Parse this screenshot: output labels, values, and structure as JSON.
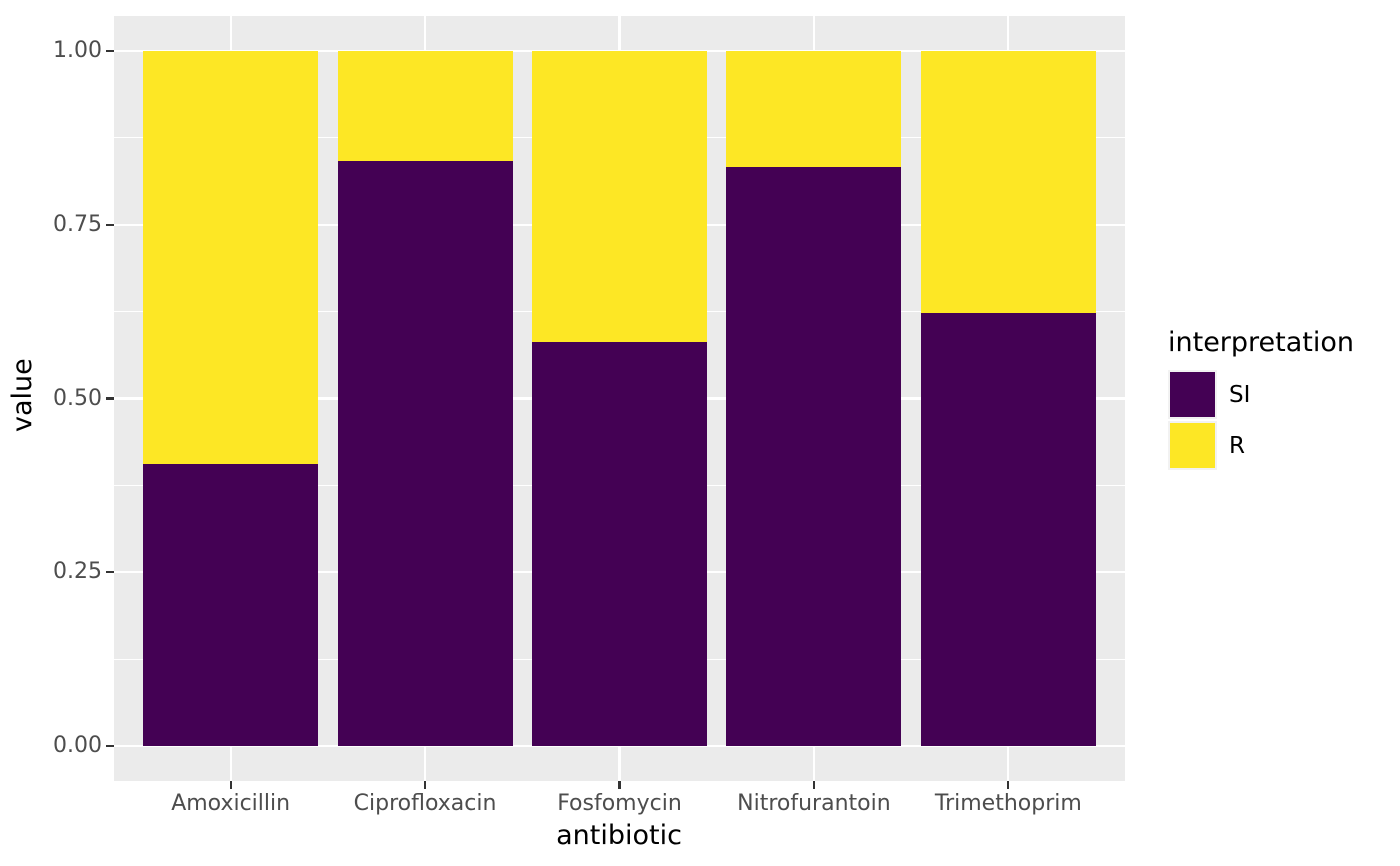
{
  "chart_data": {
    "type": "bar",
    "stacked": true,
    "orientation": "vertical",
    "title": "",
    "xlabel": "antibiotic",
    "ylabel": "value",
    "categories": [
      "Amoxicillin",
      "Ciprofloxacin",
      "Fosfomycin",
      "Nitrofurantoin",
      "Trimethoprim"
    ],
    "series": [
      {
        "name": "SI",
        "color": "#440154",
        "values": [
          0.406,
          0.842,
          0.581,
          0.833,
          0.623
        ]
      },
      {
        "name": "R",
        "color": "#FDE725",
        "values": [
          0.594,
          0.158,
          0.419,
          0.167,
          0.377
        ]
      }
    ],
    "ylim": [
      0,
      1
    ],
    "yticks": [
      {
        "value": 1.0,
        "label": "1.00"
      },
      {
        "value": 0.75,
        "label": "0.75"
      },
      {
        "value": 0.5,
        "label": "0.50"
      },
      {
        "value": 0.25,
        "label": "0.25"
      },
      {
        "value": 0.0,
        "label": "0.00"
      }
    ],
    "minor_yticks": [
      0.875,
      0.625,
      0.375,
      0.125
    ],
    "grid": true,
    "legend": {
      "title": "interpretation",
      "position": "right",
      "entries": [
        {
          "label": "SI",
          "color": "#440154"
        },
        {
          "label": "R",
          "color": "#FDE725"
        }
      ]
    },
    "style": {
      "panel_background": "#EBEBEB",
      "gridline_color": "#FFFFFF",
      "axis_text_color": "#4D4D4D",
      "axis_title_color": "#000000",
      "tick_mark_color": "#333333"
    }
  }
}
